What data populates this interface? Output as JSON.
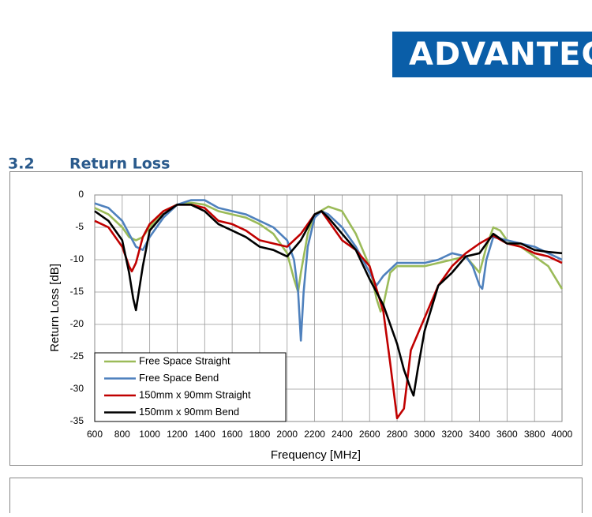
{
  "header": {
    "logo": "ADVANTECH"
  },
  "section": {
    "number": "3.2",
    "title": "Return Loss"
  },
  "chart_data": {
    "type": "line",
    "xlabel": "Frequency [MHz]",
    "ylabel": "Return Loss [dB]",
    "xlim": [
      600,
      4000
    ],
    "ylim": [
      -35,
      0
    ],
    "xticks": [
      600,
      800,
      1000,
      1200,
      1400,
      1600,
      1800,
      2000,
      2200,
      2400,
      2600,
      2800,
      3000,
      3200,
      3400,
      3600,
      3800,
      4000
    ],
    "yticks": [
      0,
      -5,
      -10,
      -15,
      -20,
      -25,
      -30,
      -35
    ],
    "grid": true,
    "legend": "lower left",
    "series": [
      {
        "name": "Free Space Straight",
        "color": "#9bbb59",
        "x": [
          600,
          700,
          800,
          850,
          900,
          950,
          1000,
          1100,
          1200,
          1300,
          1400,
          1500,
          1600,
          1700,
          1800,
          1900,
          2000,
          2050,
          2080,
          2100,
          2150,
          2200,
          2300,
          2400,
          2500,
          2600,
          2650,
          2680,
          2700,
          2750,
          2800,
          2900,
          3000,
          3100,
          3200,
          3300,
          3400,
          3450,
          3500,
          3550,
          3600,
          3700,
          3800,
          3900,
          4000
        ],
        "values": [
          -2,
          -3,
          -5,
          -6.5,
          -7,
          -6.5,
          -5,
          -2.5,
          -1.5,
          -1.2,
          -1.5,
          -2.5,
          -3,
          -3.5,
          -4.5,
          -6,
          -9,
          -13,
          -15,
          -12,
          -6,
          -3,
          -1.8,
          -2.5,
          -6,
          -11,
          -16,
          -18,
          -17,
          -12,
          -11,
          -11,
          -11,
          -10.5,
          -10,
          -9.5,
          -12,
          -8,
          -5,
          -5.5,
          -7,
          -8,
          -9.5,
          -11,
          -14.5
        ]
      },
      {
        "name": "Free Space Bend",
        "color": "#4f81bd",
        "x": [
          600,
          700,
          800,
          900,
          950,
          1000,
          1100,
          1200,
          1300,
          1400,
          1500,
          1600,
          1700,
          1800,
          1900,
          2000,
          2050,
          2080,
          2100,
          2120,
          2150,
          2200,
          2250,
          2300,
          2400,
          2500,
          2600,
          2650,
          2700,
          2800,
          2900,
          3000,
          3100,
          3200,
          3300,
          3350,
          3400,
          3420,
          3450,
          3500,
          3600,
          3700,
          3800,
          3900,
          4000
        ],
        "values": [
          -1.3,
          -2,
          -4,
          -8,
          -8.5,
          -6.5,
          -3.5,
          -1.5,
          -0.8,
          -0.8,
          -2,
          -2.5,
          -3,
          -4,
          -5,
          -7,
          -10,
          -15,
          -22.5,
          -15,
          -8,
          -3.5,
          -2.5,
          -3,
          -5,
          -8,
          -12,
          -14,
          -12.5,
          -10.5,
          -10.5,
          -10.5,
          -10,
          -9,
          -9.5,
          -11,
          -14,
          -14.5,
          -10,
          -6.5,
          -7,
          -7.5,
          -8,
          -9,
          -10
        ]
      },
      {
        "name": "150mm x 90mm Straight",
        "color": "#c00000",
        "x": [
          600,
          700,
          800,
          850,
          870,
          900,
          950,
          1000,
          1100,
          1200,
          1300,
          1400,
          1500,
          1600,
          1700,
          1800,
          1900,
          2000,
          2100,
          2200,
          2250,
          2300,
          2400,
          2500,
          2600,
          2700,
          2750,
          2800,
          2850,
          2900,
          3000,
          3100,
          3200,
          3300,
          3400,
          3500,
          3600,
          3700,
          3800,
          3900,
          4000
        ],
        "values": [
          -4,
          -5,
          -8,
          -11,
          -11.8,
          -10.5,
          -6.5,
          -4.5,
          -2.5,
          -1.5,
          -1.5,
          -2,
          -4,
          -4.5,
          -5.5,
          -7,
          -7.5,
          -8,
          -6,
          -3,
          -2.5,
          -4,
          -7,
          -8.5,
          -11,
          -18,
          -26,
          -34.5,
          -33,
          -24,
          -19,
          -14,
          -11,
          -9,
          -7.5,
          -6.3,
          -7.5,
          -8,
          -9,
          -9.5,
          -10.5
        ]
      },
      {
        "name": "150mm x 90mm Bend",
        "color": "#000000",
        "x": [
          600,
          700,
          800,
          850,
          880,
          900,
          950,
          1000,
          1100,
          1200,
          1300,
          1400,
          1500,
          1600,
          1700,
          1800,
          1900,
          2000,
          2100,
          2200,
          2250,
          2300,
          2400,
          2500,
          2600,
          2700,
          2800,
          2850,
          2900,
          2920,
          2950,
          3000,
          3100,
          3200,
          3300,
          3400,
          3500,
          3600,
          3700,
          3800,
          3900,
          4000
        ],
        "values": [
          -2.5,
          -4,
          -7,
          -12,
          -16,
          -17.8,
          -11,
          -5.5,
          -3,
          -1.5,
          -1.5,
          -2.5,
          -4.5,
          -5.5,
          -6.5,
          -8,
          -8.5,
          -9.5,
          -7,
          -3,
          -2.5,
          -3.5,
          -6,
          -8.5,
          -13,
          -17,
          -23,
          -27,
          -30,
          -31,
          -27,
          -21,
          -14,
          -12,
          -9.5,
          -9,
          -6,
          -7.5,
          -7.5,
          -8.5,
          -8.8,
          -9
        ]
      }
    ]
  }
}
